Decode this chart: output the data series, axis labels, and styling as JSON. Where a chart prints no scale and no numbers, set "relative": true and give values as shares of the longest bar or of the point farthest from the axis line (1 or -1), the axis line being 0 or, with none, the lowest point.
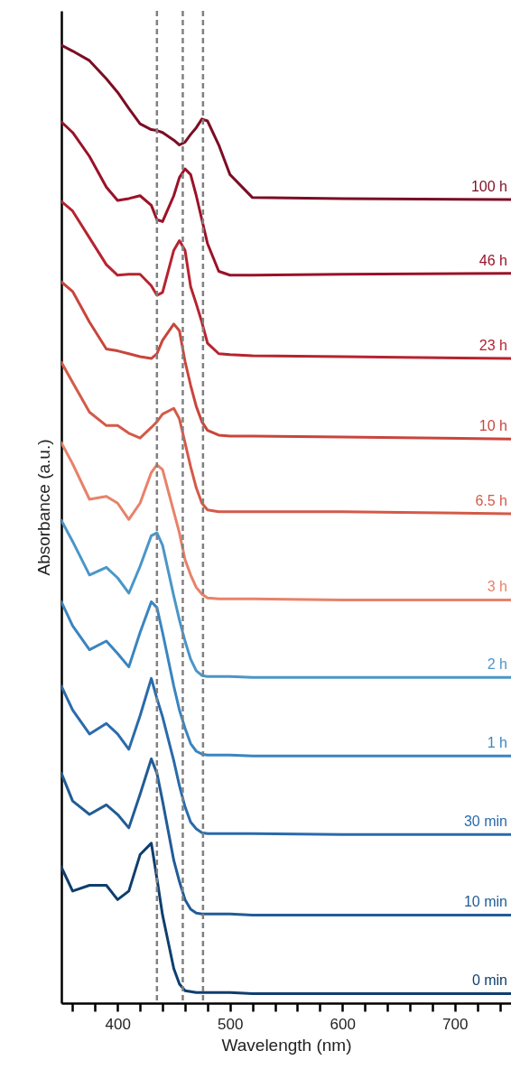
{
  "chart_data": {
    "type": "line",
    "relative": true,
    "xlabel": "Wavelength (nm)",
    "ylabel": "Absorbance (a.u.)",
    "xlim": [
      350,
      750
    ],
    "xticks": [
      {
        "value": 360,
        "label": null
      },
      {
        "value": 380,
        "label": null
      },
      400,
      {
        "value": 420,
        "label": null
      },
      {
        "value": 440,
        "label": null
      },
      {
        "value": 460,
        "label": null
      },
      {
        "value": 480,
        "label": null
      },
      500,
      {
        "value": 520,
        "label": null
      },
      {
        "value": 540,
        "label": null
      },
      {
        "value": 560,
        "label": null
      },
      {
        "value": 580,
        "label": null
      },
      600,
      {
        "value": 620,
        "label": null
      },
      {
        "value": 640,
        "label": null
      },
      {
        "value": 660,
        "label": null
      },
      {
        "value": 680,
        "label": null
      },
      700,
      {
        "value": 720,
        "label": null
      },
      {
        "value": 740,
        "label": null
      }
    ],
    "grid": false,
    "line_style": "solid",
    "x": [
      350,
      360,
      375,
      390,
      400,
      410,
      420,
      430,
      435,
      440,
      450,
      455,
      460,
      465,
      470,
      475,
      480,
      490,
      500,
      520,
      600,
      750
    ],
    "series": [
      {
        "name": "100 h",
        "color": "#7b0d24",
        "values": [
          1.0,
          0.994,
          0.984,
          0.965,
          0.951,
          0.934,
          0.918,
          0.912,
          0.911,
          0.909,
          0.901,
          0.896,
          0.899,
          0.907,
          0.914,
          0.923,
          0.921,
          0.896,
          0.865,
          0.841,
          0.84,
          0.839
        ]
      },
      {
        "name": "46 h",
        "color": "#9a1228",
        "values": [
          0.92,
          0.909,
          0.884,
          0.852,
          0.838,
          0.84,
          0.843,
          0.833,
          0.818,
          0.816,
          0.843,
          0.862,
          0.871,
          0.865,
          0.843,
          0.818,
          0.793,
          0.764,
          0.76,
          0.76,
          0.761,
          0.762
        ]
      },
      {
        "name": "23 h",
        "color": "#b52430",
        "values": [
          0.837,
          0.827,
          0.799,
          0.771,
          0.76,
          0.761,
          0.761,
          0.749,
          0.739,
          0.742,
          0.786,
          0.796,
          0.786,
          0.748,
          0.73,
          0.711,
          0.689,
          0.678,
          0.677,
          0.676,
          0.675,
          0.673
        ]
      },
      {
        "name": "10 h",
        "color": "#c9453c",
        "values": [
          0.753,
          0.743,
          0.711,
          0.683,
          0.681,
          0.678,
          0.675,
          0.673,
          0.678,
          0.692,
          0.709,
          0.702,
          0.67,
          0.645,
          0.623,
          0.607,
          0.598,
          0.593,
          0.592,
          0.592,
          0.591,
          0.589
        ]
      },
      {
        "name": "6.5 h",
        "color": "#d45a48",
        "values": [
          0.669,
          0.648,
          0.617,
          0.603,
          0.603,
          0.595,
          0.59,
          0.601,
          0.607,
          0.615,
          0.621,
          0.61,
          0.585,
          0.56,
          0.538,
          0.522,
          0.515,
          0.513,
          0.513,
          0.513,
          0.513,
          0.511
        ]
      },
      {
        "name": "3 h",
        "color": "#e8826a",
        "values": [
          0.585,
          0.563,
          0.526,
          0.529,
          0.522,
          0.505,
          0.522,
          0.554,
          0.562,
          0.557,
          0.513,
          0.491,
          0.463,
          0.447,
          0.434,
          0.427,
          0.423,
          0.422,
          0.422,
          0.422,
          0.421,
          0.421
        ]
      },
      {
        "name": "2 h",
        "color": "#4a96c8",
        "values": [
          0.504,
          0.482,
          0.447,
          0.455,
          0.444,
          0.428,
          0.456,
          0.488,
          0.491,
          0.478,
          0.425,
          0.4,
          0.378,
          0.359,
          0.347,
          0.342,
          0.341,
          0.341,
          0.341,
          0.34,
          0.34,
          0.34
        ]
      },
      {
        "name": "1 h",
        "color": "#3a85c0",
        "values": [
          0.419,
          0.394,
          0.369,
          0.378,
          0.365,
          0.351,
          0.387,
          0.419,
          0.413,
          0.387,
          0.331,
          0.306,
          0.287,
          0.271,
          0.263,
          0.26,
          0.259,
          0.259,
          0.259,
          0.258,
          0.258,
          0.258
        ]
      },
      {
        "name": "30 min",
        "color": "#2a6bab",
        "values": [
          0.331,
          0.306,
          0.281,
          0.292,
          0.281,
          0.265,
          0.3,
          0.339,
          0.318,
          0.299,
          0.253,
          0.227,
          0.205,
          0.189,
          0.182,
          0.178,
          0.177,
          0.177,
          0.177,
          0.177,
          0.176,
          0.176
        ]
      },
      {
        "name": "10 min",
        "color": "#215c96",
        "values": [
          0.24,
          0.211,
          0.197,
          0.207,
          0.197,
          0.183,
          0.218,
          0.255,
          0.24,
          0.211,
          0.149,
          0.127,
          0.108,
          0.098,
          0.094,
          0.093,
          0.093,
          0.093,
          0.093,
          0.092,
          0.092,
          0.092
        ]
      },
      {
        "name": "0 min",
        "color": "#0f3e6e",
        "values": [
          0.142,
          0.117,
          0.123,
          0.123,
          0.108,
          0.117,
          0.155,
          0.167,
          0.13,
          0.092,
          0.036,
          0.02,
          0.013,
          0.012,
          0.011,
          0.011,
          0.011,
          0.011,
          0.011,
          0.01,
          0.01,
          0.01
        ]
      }
    ],
    "ref_lines": [
      {
        "axis": "x",
        "value": 435,
        "color": "#808080",
        "line_style": "dashed"
      },
      {
        "axis": "x",
        "value": 458,
        "color": "#808080",
        "line_style": "dashed"
      },
      {
        "axis": "x",
        "value": 476,
        "color": "#808080",
        "line_style": "dashed"
      }
    ]
  }
}
